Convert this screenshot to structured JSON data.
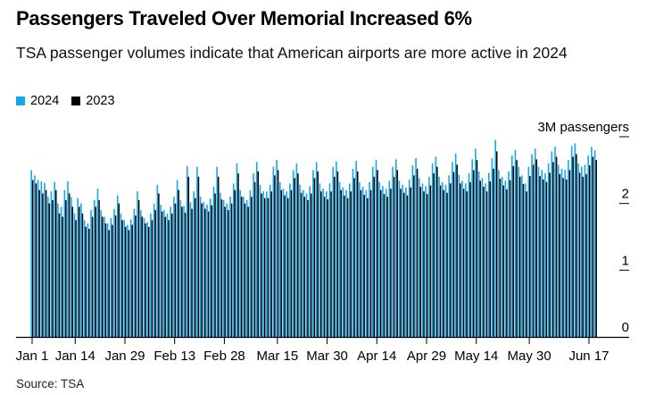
{
  "title": "Passengers Traveled Over Memorial Increased 6%",
  "subtitle": "TSA passenger volumes indicate that American airports are more active in 2024",
  "source": "Source: TSA",
  "colors": {
    "series_2024": "#1aa6e4",
    "series_2023": "#000000",
    "axis": "#000000"
  },
  "chart_data": {
    "type": "bar",
    "title": "Passengers Traveled Over Memorial Increased 6%",
    "ylabel": "3M passengers",
    "ylim": [
      0,
      3
    ],
    "yticks": [
      0,
      1,
      2,
      3
    ],
    "ytick_labels": [
      "0",
      "1",
      "2",
      "3M passengers"
    ],
    "x_ticks": [
      {
        "day": 0,
        "label": "Jan 1"
      },
      {
        "day": 13,
        "label": "Jan 14"
      },
      {
        "day": 28,
        "label": "Jan 29"
      },
      {
        "day": 43,
        "label": "Feb 13"
      },
      {
        "day": 58,
        "label": "Feb 28"
      },
      {
        "day": 74,
        "label": "Mar 15"
      },
      {
        "day": 89,
        "label": "Mar 30"
      },
      {
        "day": 104,
        "label": "Apr 14"
      },
      {
        "day": 119,
        "label": "Apr 29"
      },
      {
        "day": 134,
        "label": "May 14"
      },
      {
        "day": 150,
        "label": "May 30"
      },
      {
        "day": 168,
        "label": "Jun 17"
      }
    ],
    "x_days": 169,
    "series": [
      {
        "name": "2024",
        "values": [
          2.5,
          2.42,
          2.35,
          2.33,
          2.31,
          2.1,
          2.18,
          2.32,
          2.0,
          1.95,
          2.2,
          2.33,
          2.1,
          1.85,
          2.08,
          2.0,
          1.75,
          1.7,
          1.9,
          2.05,
          2.22,
          1.9,
          1.8,
          1.7,
          1.78,
          1.92,
          2.12,
          1.85,
          1.75,
          1.68,
          1.76,
          1.92,
          2.18,
          1.9,
          1.78,
          1.72,
          1.85,
          2.0,
          2.28,
          1.98,
          1.9,
          1.85,
          1.95,
          2.1,
          2.35,
          2.05,
          1.96,
          2.56,
          2.02,
          2.18,
          2.55,
          2.1,
          2.02,
          1.98,
          2.07,
          2.25,
          2.55,
          2.16,
          2.05,
          2.0,
          2.1,
          2.3,
          2.6,
          2.2,
          2.1,
          2.05,
          2.2,
          2.45,
          2.62,
          2.28,
          2.18,
          2.18,
          2.28,
          2.55,
          2.65,
          2.32,
          2.22,
          2.18,
          2.3,
          2.5,
          2.6,
          2.28,
          2.2,
          2.15,
          2.26,
          2.5,
          2.62,
          2.3,
          2.22,
          2.18,
          2.3,
          2.55,
          2.63,
          2.32,
          2.24,
          2.2,
          2.3,
          2.52,
          2.64,
          2.32,
          2.25,
          2.2,
          2.32,
          2.55,
          2.65,
          2.32,
          2.26,
          2.22,
          2.34,
          2.55,
          2.66,
          2.34,
          2.28,
          2.24,
          2.36,
          2.57,
          2.68,
          2.38,
          2.3,
          2.26,
          2.4,
          2.6,
          2.7,
          2.4,
          2.32,
          2.28,
          2.42,
          2.62,
          2.75,
          2.43,
          2.34,
          2.3,
          2.45,
          2.66,
          2.82,
          2.48,
          2.38,
          2.3,
          2.46,
          2.68,
          2.95,
          2.5,
          2.4,
          2.34,
          2.48,
          2.72,
          2.8,
          2.55,
          2.42,
          2.3,
          2.55,
          2.74,
          2.82,
          2.55,
          2.5,
          2.45,
          2.6,
          2.78,
          2.85,
          2.58,
          2.52,
          2.5,
          2.65,
          2.86,
          2.9,
          2.6,
          2.55,
          2.58,
          2.72,
          2.85,
          2.8
        ]
      },
      {
        "name": "2023",
        "values": [
          2.35,
          2.3,
          2.2,
          2.15,
          2.2,
          2.0,
          2.05,
          2.2,
          1.85,
          1.8,
          2.05,
          2.15,
          1.95,
          1.75,
          1.95,
          1.85,
          1.65,
          1.62,
          1.8,
          1.95,
          2.05,
          1.8,
          1.7,
          1.6,
          1.68,
          1.82,
          2.0,
          1.75,
          1.65,
          1.6,
          1.68,
          1.82,
          2.05,
          1.8,
          1.7,
          1.65,
          1.75,
          1.9,
          2.15,
          1.88,
          1.8,
          1.75,
          1.85,
          2.0,
          2.2,
          1.95,
          1.86,
          2.4,
          1.92,
          2.08,
          2.4,
          2.0,
          1.92,
          1.88,
          1.97,
          2.15,
          2.4,
          2.06,
          1.95,
          1.9,
          2.0,
          2.2,
          2.45,
          2.1,
          2.0,
          1.95,
          2.1,
          2.32,
          2.48,
          2.15,
          2.08,
          2.08,
          2.18,
          2.42,
          2.5,
          2.2,
          2.12,
          2.08,
          2.2,
          2.38,
          2.45,
          2.16,
          2.1,
          2.05,
          2.15,
          2.38,
          2.48,
          2.18,
          2.1,
          2.06,
          2.18,
          2.4,
          2.48,
          2.2,
          2.12,
          2.08,
          2.18,
          2.38,
          2.48,
          2.2,
          2.13,
          2.08,
          2.2,
          2.4,
          2.5,
          2.2,
          2.14,
          2.1,
          2.22,
          2.4,
          2.5,
          2.22,
          2.16,
          2.12,
          2.24,
          2.42,
          2.52,
          2.25,
          2.18,
          2.14,
          2.27,
          2.45,
          2.55,
          2.27,
          2.2,
          2.16,
          2.3,
          2.47,
          2.58,
          2.3,
          2.22,
          2.18,
          2.32,
          2.5,
          2.65,
          2.34,
          2.25,
          2.18,
          2.33,
          2.52,
          2.78,
          2.37,
          2.27,
          2.21,
          2.35,
          2.56,
          2.65,
          2.4,
          2.29,
          2.18,
          2.41,
          2.58,
          2.66,
          2.41,
          2.36,
          2.32,
          2.46,
          2.62,
          2.7,
          2.44,
          2.38,
          2.36,
          2.5,
          2.7,
          2.74,
          2.46,
          2.4,
          2.44,
          2.57,
          2.7,
          2.65
        ]
      }
    ]
  }
}
